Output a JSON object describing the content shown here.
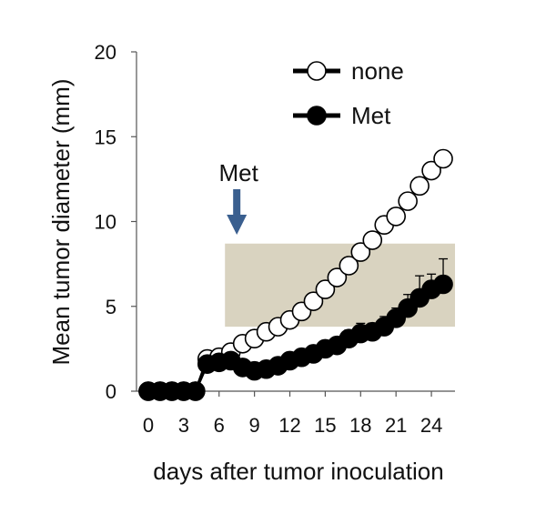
{
  "chart_data": {
    "type": "line",
    "title": "",
    "xlabel": "days after tumor inoculation",
    "ylabel": "Mean tumor diameter  (mm)",
    "xlim": [
      -1,
      26
    ],
    "ylim": [
      0,
      20
    ],
    "x_ticks": [
      0,
      3,
      6,
      9,
      12,
      15,
      18,
      21,
      24
    ],
    "y_ticks": [
      0,
      5,
      10,
      15,
      20
    ],
    "grid": false,
    "legend_position": "top-right",
    "series": [
      {
        "name": "none",
        "marker": "open-circle",
        "color": "#000000",
        "x": [
          0,
          1,
          2,
          3,
          4,
          5,
          6,
          7,
          8,
          9,
          10,
          11,
          12,
          13,
          14,
          15,
          16,
          17,
          18,
          19,
          20,
          21,
          22,
          23,
          24,
          25
        ],
        "y": [
          0,
          0,
          0,
          0,
          0,
          1.9,
          2.0,
          2.3,
          2.8,
          3.1,
          3.5,
          3.8,
          4.2,
          4.7,
          5.3,
          6.0,
          6.7,
          7.4,
          8.2,
          8.9,
          9.8,
          10.3,
          11.2,
          12.1,
          13.0,
          13.7
        ],
        "error": []
      },
      {
        "name": "Met",
        "marker": "filled-circle",
        "color": "#000000",
        "x": [
          0,
          1,
          2,
          3,
          4,
          5,
          6,
          7,
          8,
          9,
          10,
          11,
          12,
          13,
          14,
          15,
          16,
          17,
          18,
          19,
          20,
          21,
          22,
          23,
          24,
          25
        ],
        "y": [
          0,
          0,
          0,
          0,
          0,
          1.6,
          1.7,
          1.8,
          1.4,
          1.2,
          1.3,
          1.5,
          1.8,
          2.0,
          2.2,
          2.5,
          2.7,
          3.1,
          3.4,
          3.5,
          3.8,
          4.3,
          4.9,
          5.5,
          6.0,
          6.3
        ],
        "error": [
          0,
          0,
          0,
          0,
          0,
          0.2,
          0.2,
          0.2,
          0.2,
          0.2,
          0.2,
          0.2,
          0.2,
          0.3,
          0.3,
          0.3,
          0.3,
          0.5,
          0.6,
          0.5,
          0.6,
          0.6,
          0.8,
          1.3,
          0.9,
          1.5
        ]
      }
    ],
    "annotations": [
      {
        "text": "Met",
        "arrow_to_x": 7.5,
        "color": "#3a5f8f"
      }
    ],
    "highlight_region": {
      "x": [
        6.5,
        26
      ],
      "y": [
        3.8,
        8.7
      ],
      "color": "#d7d1bd"
    }
  }
}
